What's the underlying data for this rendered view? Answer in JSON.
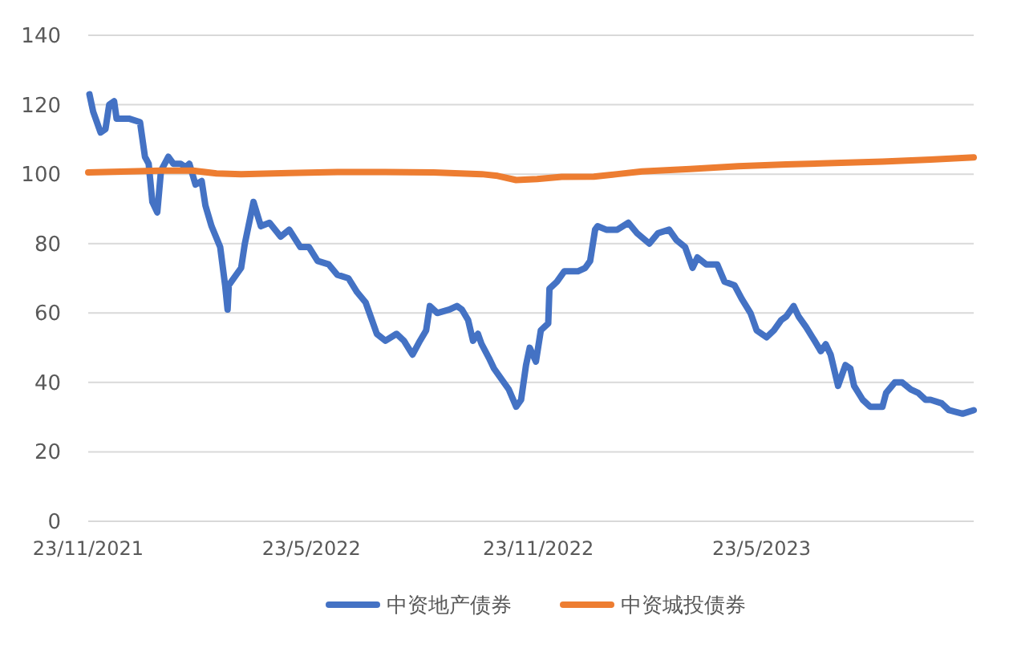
{
  "chart_data": {
    "type": "line",
    "xlim": [
      "2021-11-23",
      "2023-11-11"
    ],
    "xticks": [
      {
        "value": "2021-11-23",
        "label": "23/11/2021"
      },
      {
        "value": "2022-05-23",
        "label": "23/5/2022"
      },
      {
        "value": "2022-11-23",
        "label": "23/11/2022"
      },
      {
        "value": "2023-05-23",
        "label": "23/5/2023"
      }
    ],
    "ylim": [
      0,
      140
    ],
    "yticks": [
      0,
      20,
      40,
      60,
      80,
      100,
      120,
      140
    ],
    "grid": "y",
    "legend": "bottom",
    "line_style": "solid",
    "series": [
      {
        "name": "中资地产债券",
        "color": "#4472c4",
        "x": [
          "2021-11-24",
          "2021-11-27",
          "2021-12-03",
          "2021-12-07",
          "2021-12-10",
          "2021-12-14",
          "2021-12-16",
          "2021-12-26",
          "2022-01-04",
          "2022-01-08",
          "2022-01-11",
          "2022-01-14",
          "2022-01-18",
          "2022-01-21",
          "2022-01-27",
          "2022-01-31",
          "2022-02-06",
          "2022-02-10",
          "2022-02-13",
          "2022-02-18",
          "2022-02-23",
          "2022-02-26",
          "2022-03-03",
          "2022-03-10",
          "2022-03-14",
          "2022-03-16",
          "2022-03-17",
          "2022-03-27",
          "2022-03-30",
          "2022-04-06",
          "2022-04-12",
          "2022-04-19",
          "2022-04-28",
          "2022-05-05",
          "2022-05-14",
          "2022-05-21",
          "2022-05-28",
          "2022-06-06",
          "2022-06-13",
          "2022-06-22",
          "2022-06-29",
          "2022-07-06",
          "2022-07-11",
          "2022-07-15",
          "2022-07-22",
          "2022-07-31",
          "2022-08-06",
          "2022-08-13",
          "2022-08-19",
          "2022-08-24",
          "2022-08-27",
          "2022-09-02",
          "2022-09-12",
          "2022-09-18",
          "2022-09-22",
          "2022-09-27",
          "2022-10-01",
          "2022-10-05",
          "2022-10-08",
          "2022-10-14",
          "2022-10-18",
          "2022-10-24",
          "2022-10-30",
          "2022-11-05",
          "2022-11-09",
          "2022-11-13",
          "2022-11-16",
          "2022-11-21",
          "2022-11-25",
          "2022-12-01",
          "2022-12-02",
          "2022-12-08",
          "2022-12-14",
          "2022-12-25",
          "2022-12-31",
          "2023-01-04",
          "2023-01-08",
          "2023-01-10",
          "2023-01-17",
          "2023-01-26",
          "2023-02-04",
          "2023-02-11",
          "2023-02-21",
          "2023-02-28",
          "2023-03-09",
          "2023-03-15",
          "2023-03-22",
          "2023-03-28",
          "2023-04-01",
          "2023-04-08",
          "2023-04-17",
          "2023-04-23",
          "2023-05-01",
          "2023-05-07",
          "2023-05-14",
          "2023-05-19",
          "2023-05-27",
          "2023-06-02",
          "2023-06-08",
          "2023-06-12",
          "2023-06-18",
          "2023-06-22",
          "2023-06-28",
          "2023-07-05",
          "2023-07-10",
          "2023-07-14",
          "2023-07-18",
          "2023-07-24",
          "2023-07-30",
          "2023-08-03",
          "2023-08-06",
          "2023-08-13",
          "2023-08-19",
          "2023-08-29",
          "2023-09-01",
          "2023-09-08",
          "2023-09-14",
          "2023-09-21",
          "2023-09-27",
          "2023-10-03",
          "2023-10-07",
          "2023-10-16",
          "2023-10-22",
          "2023-11-02",
          "2023-11-11"
        ],
        "values": [
          123,
          118,
          112,
          113,
          120,
          121,
          116,
          116,
          115,
          105,
          103,
          92,
          89,
          101,
          105,
          103,
          103,
          102,
          103,
          97,
          98,
          91,
          85,
          79,
          68,
          61,
          68,
          73,
          80,
          92,
          85,
          86,
          82,
          84,
          79,
          79,
          75,
          74,
          71,
          70,
          66,
          63,
          58,
          54,
          52,
          54,
          52,
          48,
          52,
          55,
          62,
          60,
          61,
          62,
          61,
          58,
          52,
          54,
          51,
          47,
          44,
          41,
          38,
          33,
          35,
          45,
          50,
          46,
          55,
          57,
          67,
          69,
          72,
          72,
          73,
          75,
          84,
          85,
          84,
          84,
          86,
          83,
          80,
          83,
          84,
          81,
          79,
          73,
          76,
          74,
          74,
          69,
          68,
          64,
          60,
          55,
          53,
          55,
          58,
          59,
          62,
          59,
          56,
          52,
          49,
          51,
          48,
          39,
          45,
          44,
          39,
          35,
          33,
          33,
          37,
          40,
          40,
          38,
          37,
          35,
          35,
          34,
          32,
          31,
          32
        ]
      },
      {
        "name": "中资城投债券",
        "color": "#ed7d31",
        "x": [
          "2021-11-23",
          "2021-12-26",
          "2022-01-21",
          "2022-02-16",
          "2022-03-07",
          "2022-03-27",
          "2022-05-05",
          "2022-06-13",
          "2022-07-22",
          "2022-08-30",
          "2022-10-08",
          "2022-10-21",
          "2022-11-05",
          "2022-11-22",
          "2022-12-12",
          "2023-01-07",
          "2023-01-26",
          "2023-02-15",
          "2023-03-26",
          "2023-05-04",
          "2023-06-12",
          "2023-07-21",
          "2023-08-29",
          "2023-10-07",
          "2023-11-11"
        ],
        "values": [
          100.5,
          100.8,
          101,
          101,
          100.2,
          100,
          100.3,
          100.6,
          100.6,
          100.5,
          100,
          99.5,
          98.3,
          98.6,
          99.2,
          99.3,
          100,
          100.8,
          101.5,
          102.3,
          102.8,
          103.2,
          103.6,
          104.2,
          104.8
        ]
      }
    ]
  }
}
